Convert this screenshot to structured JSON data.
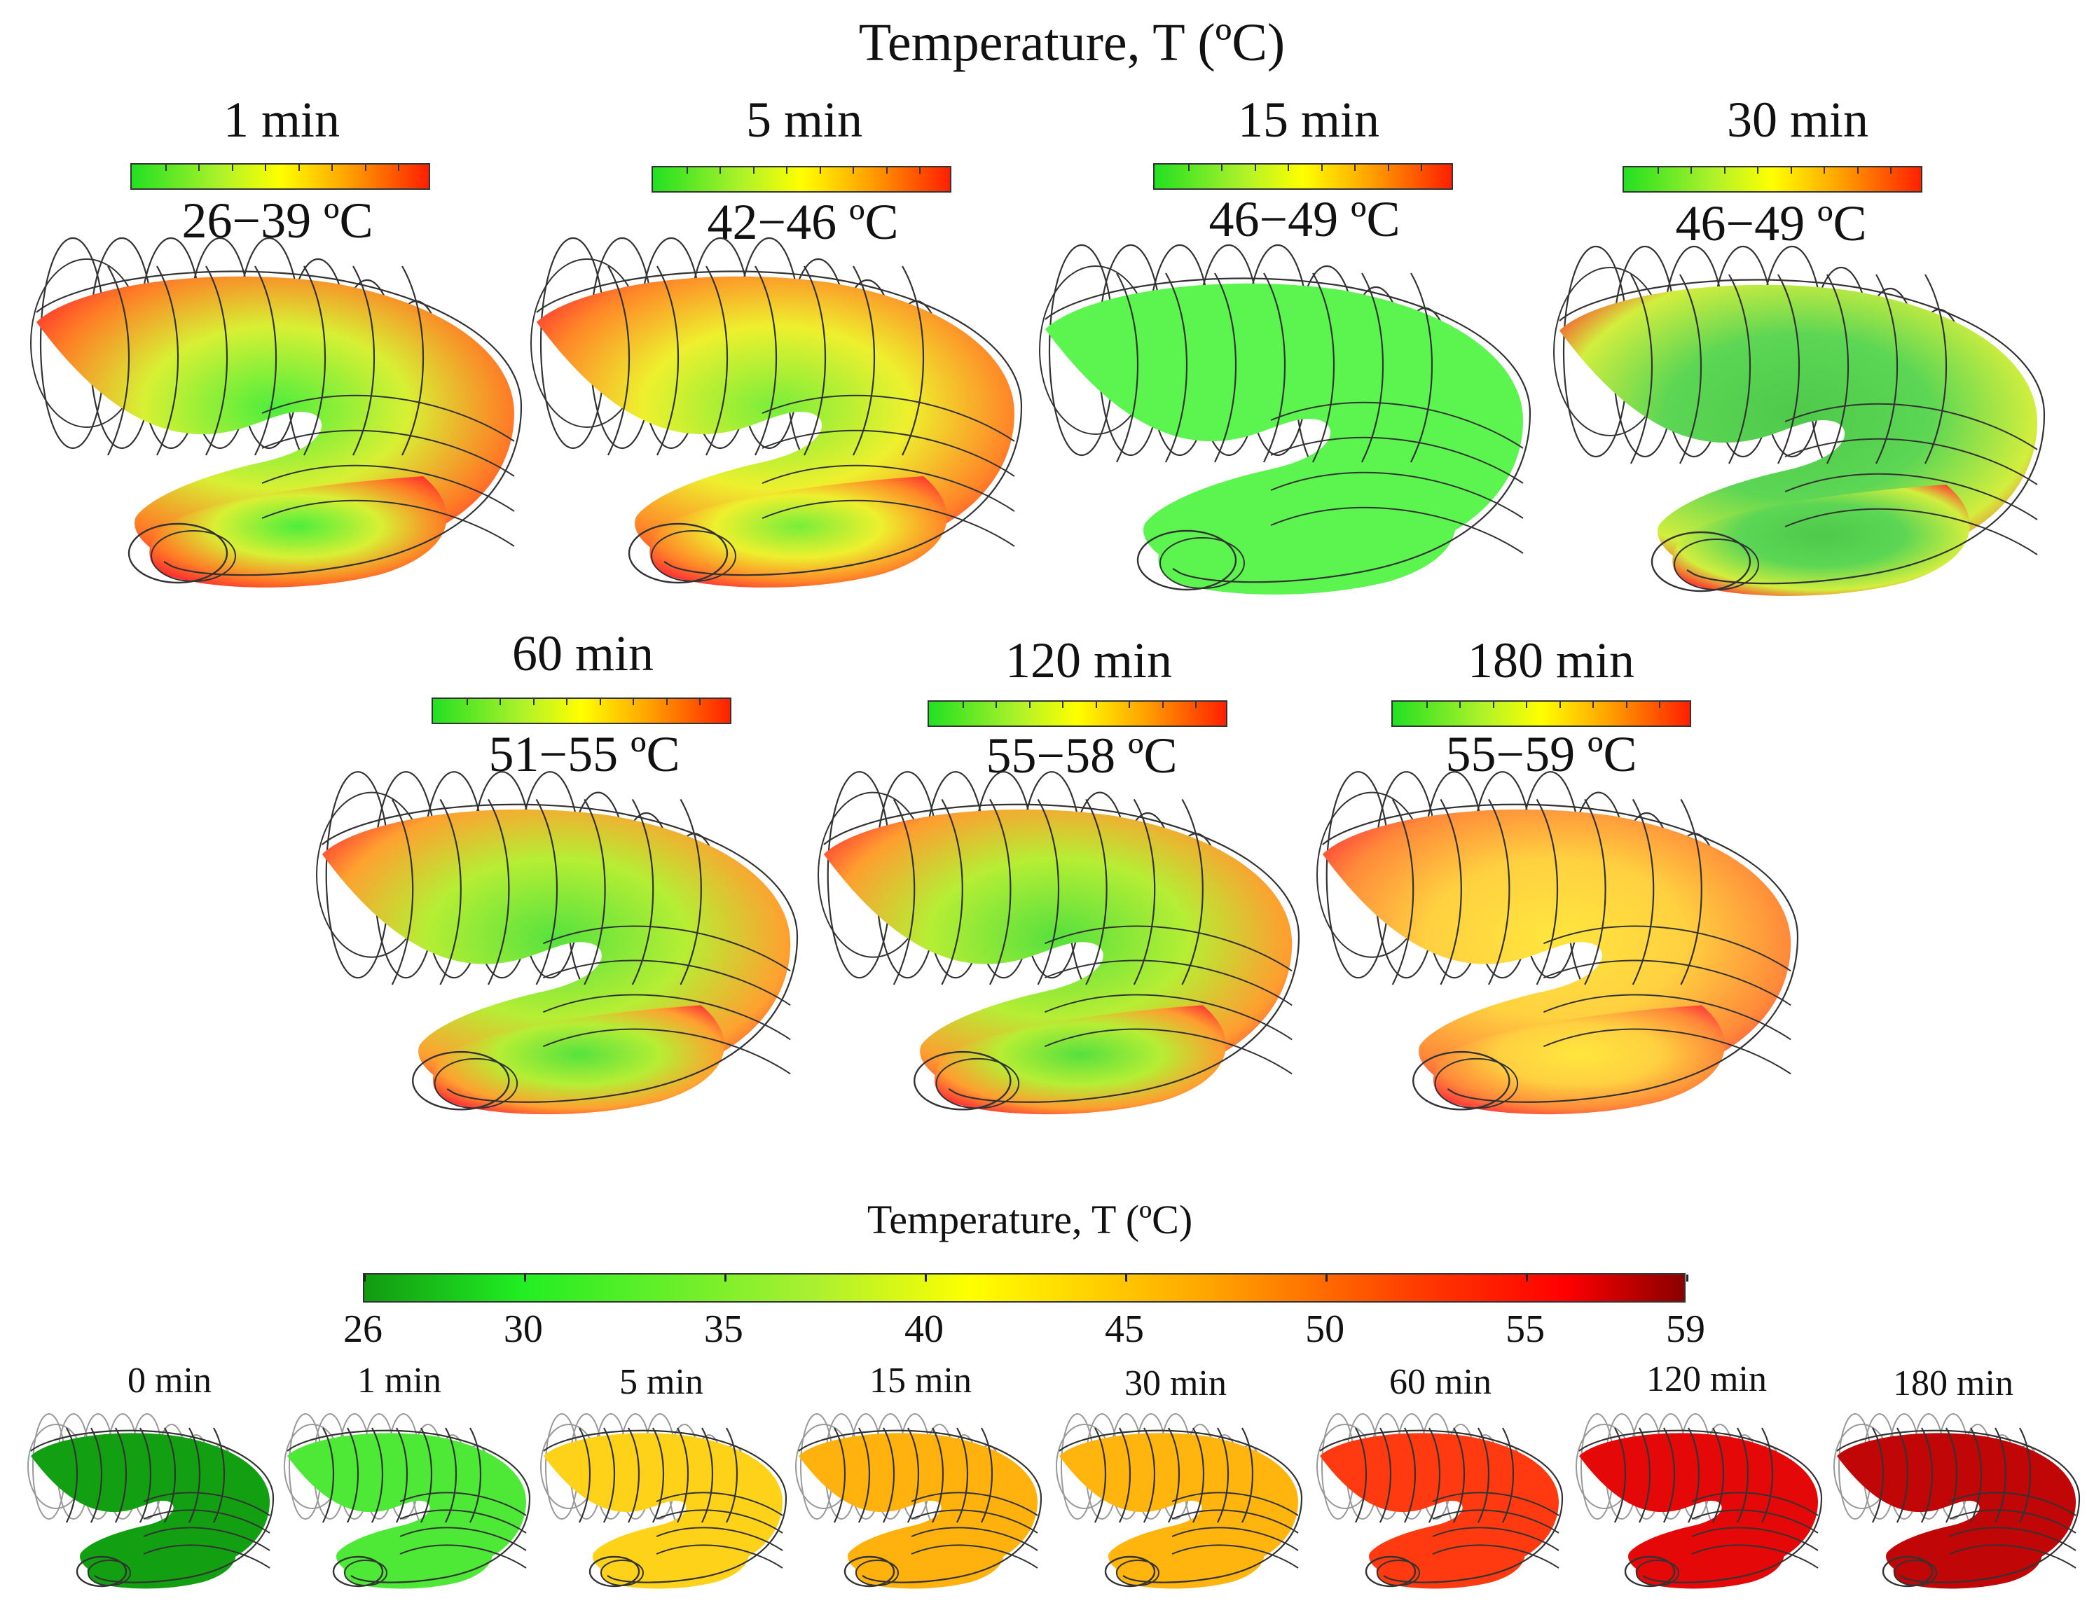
{
  "figure_title": "Temperature, T (ºC)",
  "top_panels": [
    {
      "time": "1 min",
      "range": "26−39 ºC",
      "center": "#4cee3c",
      "mid": "#d8f034",
      "edge": "#ff7b26",
      "rim": "#ff2d2d"
    },
    {
      "time": "5 min",
      "range": "42−46 ºC",
      "center": "#78ee3a",
      "mid": "#eef02e",
      "edge": "#ff8628",
      "rim": "#ff3333"
    },
    {
      "time": "15 min",
      "range": "46−49 ºC",
      "center": "#5cf550",
      "mid": "#5cf550",
      "edge": "#5cf550",
      "rim": "#5cf550"
    },
    {
      "time": "30 min",
      "range": "46−49 ºC",
      "center": "#4ec94a",
      "mid": "#5cd654",
      "edge": "#d2ee3e",
      "rim": "#ff3b2e"
    },
    {
      "time": "60 min",
      "range": "51−55 ºC",
      "center": "#56e23e",
      "mid": "#b6ee34",
      "edge": "#ffa030",
      "rim": "#ff3434"
    },
    {
      "time": "120 min",
      "range": "55−58 ºC",
      "center": "#56e03e",
      "mid": "#b6ee34",
      "edge": "#ff9d30",
      "rim": "#ff3434"
    },
    {
      "time": "180 min",
      "range": "55−59 ºC",
      "center": "#ffe63e",
      "mid": "#ffd040",
      "edge": "#ff8a3a",
      "rim": "#ff3a3a"
    }
  ],
  "bottom_section": {
    "title": "Temperature, T (ºC)",
    "scale_ticks": [
      "26",
      "30",
      "35",
      "40",
      "45",
      "50",
      "55",
      "59"
    ],
    "scale_values": [
      26,
      30,
      35,
      40,
      45,
      50,
      55,
      59
    ],
    "scale_min": 26,
    "scale_max": 59,
    "snapshots": [
      {
        "time": "0 min",
        "color": "#12a012"
      },
      {
        "time": "1 min",
        "color": "#4ee836"
      },
      {
        "time": "5 min",
        "color": "#ffd21a"
      },
      {
        "time": "15 min",
        "color": "#ffb20e"
      },
      {
        "time": "30 min",
        "color": "#ffb40e"
      },
      {
        "time": "60 min",
        "color": "#ff3a10"
      },
      {
        "time": "120 min",
        "color": "#e40808"
      },
      {
        "time": "180 min",
        "color": "#c00606"
      }
    ]
  }
}
